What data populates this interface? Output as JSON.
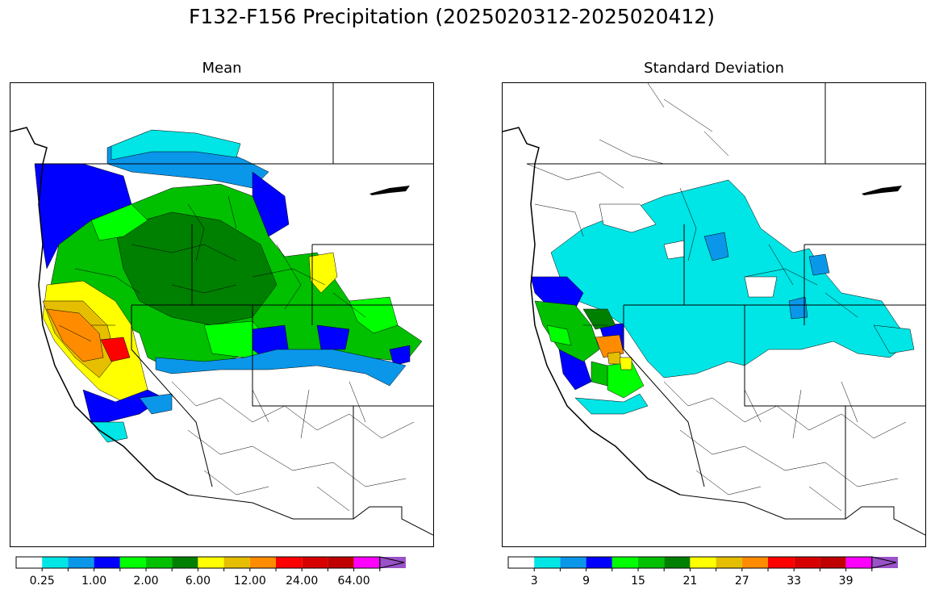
{
  "title": "F132-F156 Precipitation (2025020312-2025020412)",
  "panels": [
    {
      "title": "Mean",
      "legend_colors": [
        "#ffffff",
        "#00e5e5",
        "#0a97ea",
        "#0000ff",
        "#00ff00",
        "#00c000",
        "#008000",
        "#ffff00",
        "#e5be00",
        "#ff8c00",
        "#ff0000",
        "#d60000",
        "#c00000",
        "#ff00ff",
        "#9a52c8"
      ],
      "tick_labels": [
        "0.25",
        "1.00",
        "2.00",
        "6.00",
        "12.00",
        "24.00",
        "64.00"
      ]
    },
    {
      "title": "Standard Deviation",
      "legend_colors": [
        "#ffffff",
        "#00e5e5",
        "#0a97ea",
        "#0000ff",
        "#00ff00",
        "#00c000",
        "#008000",
        "#ffff00",
        "#e5be00",
        "#ff8c00",
        "#ff0000",
        "#d60000",
        "#c00000",
        "#ff00ff",
        "#9a52c8"
      ],
      "tick_labels": [
        "3",
        "9",
        "15",
        "21",
        "27",
        "33",
        "39"
      ]
    }
  ],
  "colors": {
    "cyan": "#00e5e5",
    "lightblue": "#0a97ea",
    "blue": "#0000ff",
    "lime": "#00ff00",
    "green": "#00c000",
    "darkgreen": "#008000",
    "yellow": "#ffff00",
    "gold": "#e5be00",
    "orange": "#ff8c00",
    "red": "#ff0000",
    "darkred": "#c00000",
    "white": "#ffffff"
  }
}
